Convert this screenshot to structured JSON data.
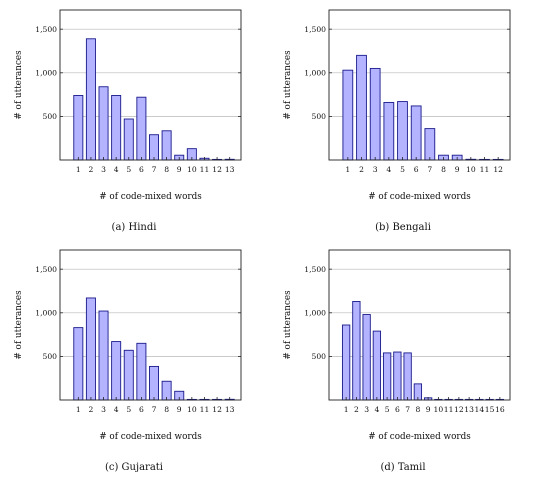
{
  "chart_data": [
    {
      "type": "bar",
      "caption": "(a) Hindi",
      "xlabel": "# of code-mixed words",
      "ylabel": "# of utterances",
      "categories": [
        "1",
        "2",
        "3",
        "4",
        "5",
        "6",
        "7",
        "8",
        "9",
        "10",
        "11",
        "12",
        "13"
      ],
      "values": [
        740,
        1390,
        840,
        740,
        470,
        720,
        290,
        335,
        55,
        130,
        20,
        0,
        8
      ],
      "ylim": [
        0,
        1720
      ],
      "yticks": [
        500,
        1000,
        1500
      ],
      "ytick_labels": [
        "500",
        "1,000",
        "1,500"
      ],
      "grid": true,
      "color": "#b3b3ff",
      "edge_color": "#1a1a8c"
    },
    {
      "type": "bar",
      "caption": "(b) Bengali",
      "xlabel": "# of code-mixed words",
      "ylabel": "# of utterances",
      "categories": [
        "1",
        "2",
        "3",
        "4",
        "5",
        "6",
        "7",
        "8",
        "9",
        "10",
        "11",
        "12"
      ],
      "values": [
        1030,
        1200,
        1050,
        660,
        670,
        620,
        360,
        55,
        55,
        8,
        5,
        5
      ],
      "ylim": [
        0,
        1720
      ],
      "yticks": [
        500,
        1000,
        1500
      ],
      "ytick_labels": [
        "500",
        "1,000",
        "1,500"
      ],
      "grid": true,
      "color": "#b3b3ff",
      "edge_color": "#1a1a8c"
    },
    {
      "type": "bar",
      "caption": "(c) Gujarati",
      "xlabel": "# of code-mixed words",
      "ylabel": "# of utterances",
      "categories": [
        "1",
        "2",
        "3",
        "4",
        "5",
        "6",
        "7",
        "8",
        "9",
        "10",
        "11",
        "12",
        "13"
      ],
      "values": [
        830,
        1170,
        1020,
        670,
        570,
        650,
        385,
        215,
        100,
        5,
        5,
        0,
        8
      ],
      "ylim": [
        0,
        1720
      ],
      "yticks": [
        500,
        1000,
        1500
      ],
      "ytick_labels": [
        "500",
        "1,000",
        "1,500"
      ],
      "grid": true,
      "color": "#b3b3ff",
      "edge_color": "#1a1a8c"
    },
    {
      "type": "bar",
      "caption": "(d) Tamil",
      "xlabel": "# of code-mixed words",
      "ylabel": "# of utterances",
      "categories": [
        "1",
        "2",
        "3",
        "4",
        "5",
        "6",
        "7",
        "8",
        "9",
        "10",
        "11",
        "12",
        "13",
        "14",
        "15",
        "16"
      ],
      "values": [
        860,
        1130,
        980,
        790,
        540,
        550,
        540,
        185,
        25,
        0,
        0,
        0,
        0,
        0,
        0,
        0
      ],
      "ylim": [
        0,
        1720
      ],
      "yticks": [
        500,
        1000,
        1500
      ],
      "ytick_labels": [
        "500",
        "1,000",
        "1,500"
      ],
      "grid": true,
      "color": "#b3b3ff",
      "edge_color": "#1a1a8c"
    }
  ]
}
